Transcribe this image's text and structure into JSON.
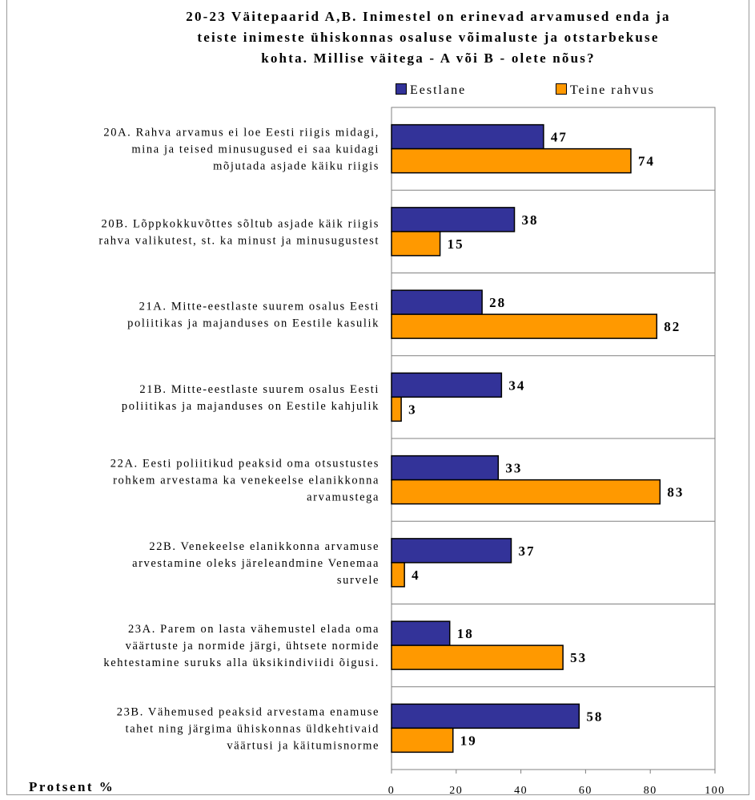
{
  "chart_data": {
    "type": "bar",
    "orientation": "horizontal",
    "title": "20-23 Väitepaarid A,B. Inimestel on erinevad arvamused enda ja\nteiste inimeste ühiskonnas osaluse võimaluste ja otstarbekuse\nkohta. Millise väitega - A või B - olete nõus?",
    "xlabel": "Protsent %",
    "ylabel": "",
    "xlim": [
      0,
      100
    ],
    "xticks": [
      0,
      20,
      40,
      60,
      80,
      100
    ],
    "grid": "horizontal lines between categories",
    "legend_position": "top-right",
    "categories": [
      [
        "20A. Rahva arvamus ei loe Eesti riigis midagi,",
        "mina ja teised minusugused ei saa kuidagi",
        "mõjutada asjade käiku riigis"
      ],
      [
        "20B. Lõppkokkuvõttes sõltub asjade käik riigis",
        "rahva valikutest, st. ka minust ja minusugustest"
      ],
      [
        "21A. Mitte-eestlaste suurem osalus Eesti",
        "poliitikas ja majanduses on Eestile kasulik"
      ],
      [
        "21B. Mitte-eestlaste suurem osalus Eesti",
        "poliitikas ja majanduses on Eestile kahjulik"
      ],
      [
        "22A. Eesti poliitikud peaksid oma otsustustes",
        "rohkem arvestama ka venekeelse elanikkonna",
        "arvamustega"
      ],
      [
        "22B. Venekeelse elanikkonna arvamuse",
        "arvestamine oleks järeleandmine Venemaa",
        "survele"
      ],
      [
        "23A. Parem on lasta vähemustel elada oma",
        "väärtuste ja normide järgi, ühtsete normide",
        "kehtestamine suruks alla üksikindiviidi õigusi."
      ],
      [
        "23B. Vähemused peaksid arvestama enamuse",
        "tahet ning järgima ühiskonnas üldkehtivaid",
        "väärtusi ja käitumisnorme"
      ]
    ],
    "series": [
      {
        "name": "Eestlane",
        "color": "#333399",
        "values": [
          47,
          38,
          28,
          34,
          33,
          37,
          18,
          58
        ]
      },
      {
        "name": "Teine rahvus",
        "color": "#ff9900",
        "values": [
          74,
          15,
          82,
          3,
          83,
          4,
          53,
          19
        ]
      }
    ]
  }
}
